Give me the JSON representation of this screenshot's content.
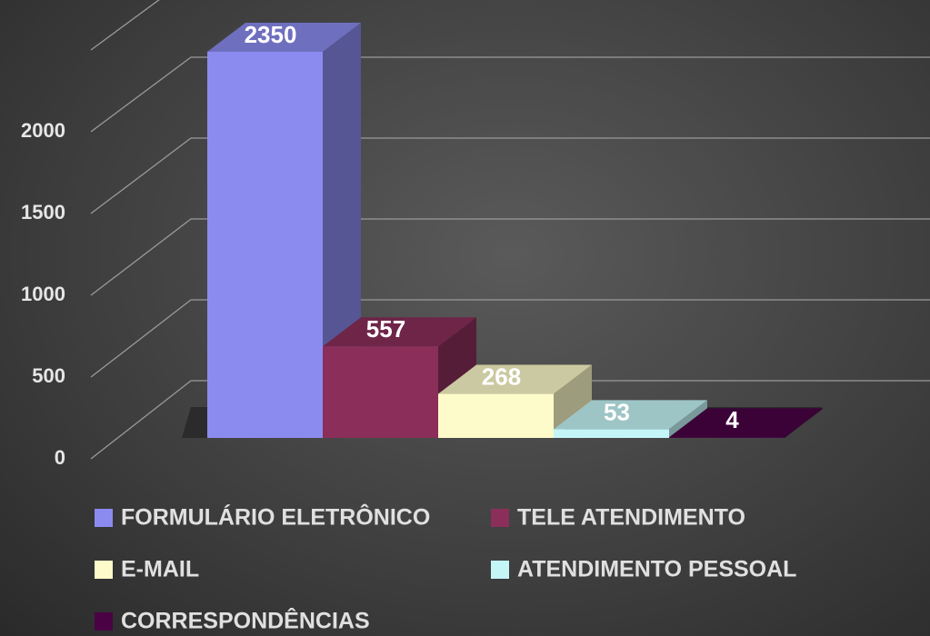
{
  "chart_data": {
    "type": "bar3d",
    "categories": [
      "FORMULÁRIO ELETRÔNICO",
      "TELE ATENDIMENTO",
      "E-MAIL",
      "ATENDIMENTO PESSOAL",
      "CORRESPONDÊNCIAS"
    ],
    "values": [
      2350,
      557,
      268,
      53,
      4
    ],
    "colors": [
      "#8b8bef",
      "#8b2e5a",
      "#fdfbc9",
      "#c4f6f8",
      "#4a0245"
    ],
    "ylim": [
      0,
      2500
    ],
    "yticks": [
      0,
      500,
      1000,
      1500,
      2000
    ],
    "grid": true,
    "legend": "bottom"
  }
}
